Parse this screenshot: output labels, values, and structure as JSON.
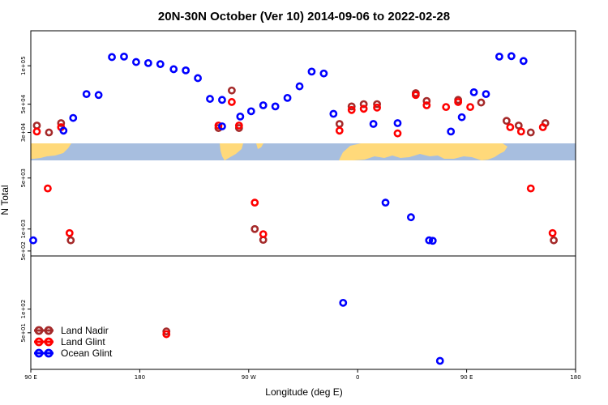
{
  "chart_data": {
    "type": "scatter",
    "title": "20N-30N October (Ver 10)   2014-09-06 to 2022-02-28",
    "xlabel": "Longitude (deg E)",
    "ylabel": "N Total",
    "x_ticks": [
      {
        "value": 90,
        "label": "90 E"
      },
      {
        "value": 180,
        "label": "180"
      },
      {
        "value": 270,
        "label": "90 W"
      },
      {
        "value": 360,
        "label": "0"
      },
      {
        "value": 450,
        "label": "90 E"
      },
      {
        "value": 540,
        "label": "180"
      }
    ],
    "xlim": [
      90,
      540
    ],
    "panels": [
      {
        "name": "top",
        "scale": "log",
        "ylim": [
          25000,
          180000
        ],
        "ticks": [
          {
            "value": 100000,
            "label": "1e+05"
          },
          {
            "value": 50000,
            "label": "5e+04"
          },
          {
            "value": 30000,
            "label": "3e+04"
          }
        ]
      },
      {
        "name": "middle",
        "scale": "log",
        "ylim": [
          450,
          8500
        ],
        "ticks": [
          {
            "value": 5000,
            "label": "5e+03"
          },
          {
            "value": 1000,
            "label": "1e+03"
          },
          {
            "value": 500,
            "label": "5e+02"
          }
        ]
      },
      {
        "name": "bottom",
        "scale": "log",
        "ylim": [
          18,
          450
        ],
        "ticks": [
          {
            "value": 100,
            "label": "1e+02"
          },
          {
            "value": 50,
            "label": "5e+01"
          }
        ]
      }
    ],
    "series": [
      {
        "name": "Land Nadir",
        "color": "#a52a2a",
        "points": [
          {
            "x": 95,
            "y": 34000
          },
          {
            "x": 105,
            "y": 30000
          },
          {
            "x": 115,
            "y": 35500
          },
          {
            "x": 123,
            "y": 700
          },
          {
            "x": 202,
            "y": 52
          },
          {
            "x": 245,
            "y": 32500
          },
          {
            "x": 256,
            "y": 64000
          },
          {
            "x": 262,
            "y": 32500
          },
          {
            "x": 275,
            "y": 1000
          },
          {
            "x": 282,
            "y": 710
          },
          {
            "x": 345,
            "y": 35000
          },
          {
            "x": 355,
            "y": 48000
          },
          {
            "x": 365,
            "y": 50000
          },
          {
            "x": 376,
            "y": 50000
          },
          {
            "x": 408,
            "y": 61000
          },
          {
            "x": 417,
            "y": 53000
          },
          {
            "x": 443,
            "y": 54000
          },
          {
            "x": 462,
            "y": 51500
          },
          {
            "x": 483,
            "y": 37000
          },
          {
            "x": 493,
            "y": 34000
          },
          {
            "x": 503,
            "y": 30000
          },
          {
            "x": 515,
            "y": 35500
          },
          {
            "x": 522,
            "y": 700
          }
        ]
      },
      {
        "name": "Land Glint",
        "color": "#ff0000",
        "points": [
          {
            "x": 95,
            "y": 30500
          },
          {
            "x": 104,
            "y": 3600
          },
          {
            "x": 115,
            "y": 33000
          },
          {
            "x": 122,
            "y": 880
          },
          {
            "x": 202,
            "y": 48
          },
          {
            "x": 245,
            "y": 34000
          },
          {
            "x": 256,
            "y": 52000
          },
          {
            "x": 262,
            "y": 34000
          },
          {
            "x": 275,
            "y": 2300
          },
          {
            "x": 282,
            "y": 850
          },
          {
            "x": 345,
            "y": 31000
          },
          {
            "x": 355,
            "y": 45000
          },
          {
            "x": 365,
            "y": 46000
          },
          {
            "x": 376,
            "y": 47000
          },
          {
            "x": 393,
            "y": 29500
          },
          {
            "x": 408,
            "y": 59000
          },
          {
            "x": 417,
            "y": 49000
          },
          {
            "x": 433,
            "y": 47500
          },
          {
            "x": 443,
            "y": 52000
          },
          {
            "x": 453,
            "y": 47500
          },
          {
            "x": 486,
            "y": 33000
          },
          {
            "x": 495,
            "y": 30500
          },
          {
            "x": 503,
            "y": 3600
          },
          {
            "x": 513,
            "y": 33000
          },
          {
            "x": 521,
            "y": 880
          }
        ]
      },
      {
        "name": "Ocean Glint",
        "color": "#0000ff",
        "points": [
          {
            "x": 92,
            "y": 700
          },
          {
            "x": 117,
            "y": 31000
          },
          {
            "x": 125,
            "y": 39000
          },
          {
            "x": 136,
            "y": 60000
          },
          {
            "x": 146,
            "y": 59000
          },
          {
            "x": 157,
            "y": 117000
          },
          {
            "x": 167,
            "y": 118000
          },
          {
            "x": 177,
            "y": 107000
          },
          {
            "x": 187,
            "y": 105000
          },
          {
            "x": 197,
            "y": 103000
          },
          {
            "x": 208,
            "y": 94000
          },
          {
            "x": 218,
            "y": 92000
          },
          {
            "x": 228,
            "y": 80000
          },
          {
            "x": 238,
            "y": 55000
          },
          {
            "x": 248,
            "y": 54000
          },
          {
            "x": 248,
            "y": 33500
          },
          {
            "x": 263,
            "y": 40000
          },
          {
            "x": 272,
            "y": 44000
          },
          {
            "x": 282,
            "y": 49000
          },
          {
            "x": 292,
            "y": 48000
          },
          {
            "x": 302,
            "y": 56000
          },
          {
            "x": 312,
            "y": 69000
          },
          {
            "x": 322,
            "y": 90000
          },
          {
            "x": 332,
            "y": 87000
          },
          {
            "x": 340,
            "y": 42000
          },
          {
            "x": 348,
            "y": 120
          },
          {
            "x": 373,
            "y": 35000
          },
          {
            "x": 383,
            "y": 2300
          },
          {
            "x": 393,
            "y": 35500
          },
          {
            "x": 404,
            "y": 1450
          },
          {
            "x": 419,
            "y": 700
          },
          {
            "x": 422,
            "y": 690
          },
          {
            "x": 428,
            "y": 22
          },
          {
            "x": 437,
            "y": 30500
          },
          {
            "x": 446,
            "y": 39500
          },
          {
            "x": 456,
            "y": 62000
          },
          {
            "x": 466,
            "y": 60000
          },
          {
            "x": 477,
            "y": 118000
          },
          {
            "x": 487,
            "y": 119000
          },
          {
            "x": 497,
            "y": 109000
          }
        ]
      }
    ],
    "legend": {
      "placement": "bottom-left",
      "items": [
        "Land Nadir",
        "Land Glint",
        "Ocean Glint"
      ]
    }
  }
}
